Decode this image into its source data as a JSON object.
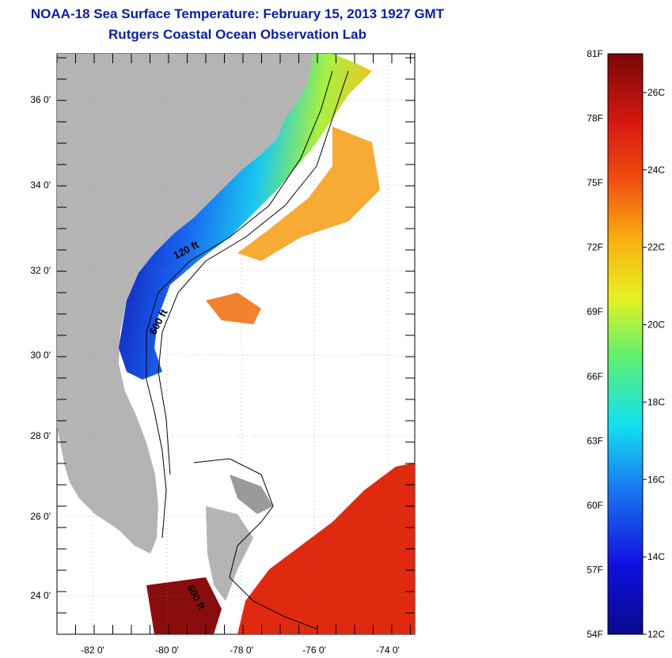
{
  "header": {
    "title": "NOAA-18 Sea Surface Temperature:  February 15, 2013 1927 GMT",
    "subtitle": "Rutgers Coastal Ocean Observation Lab"
  },
  "map": {
    "lat_labels": [
      "36 0'",
      "34 0'",
      "32 0'",
      "30 0'",
      "28 0'",
      "26 0'",
      "24 0'"
    ],
    "lon_labels": [
      "-82 0'",
      "-80 0'",
      "-78 0'",
      "-76 0'",
      "-74 0'"
    ],
    "contour_labels": [
      "120 ft",
      "600 ft",
      "600 ft"
    ],
    "colors": {
      "land": "#b4b4b4",
      "ocean_background": "#ffffff",
      "cold": "#0a0a9c",
      "warm": "#e02a10",
      "hot": "#8a0d0d"
    }
  },
  "colorbar": {
    "fahrenheit_labels": [
      "81F",
      "78F",
      "75F",
      "72F",
      "69F",
      "66F",
      "63F",
      "60F",
      "57F",
      "54F"
    ],
    "celsius_labels": [
      "26C",
      "24C",
      "22C",
      "20C",
      "18C",
      "16C",
      "14C",
      "12C"
    ],
    "min_f": 54,
    "max_f": 81,
    "min_c": 12,
    "max_c": 27
  }
}
